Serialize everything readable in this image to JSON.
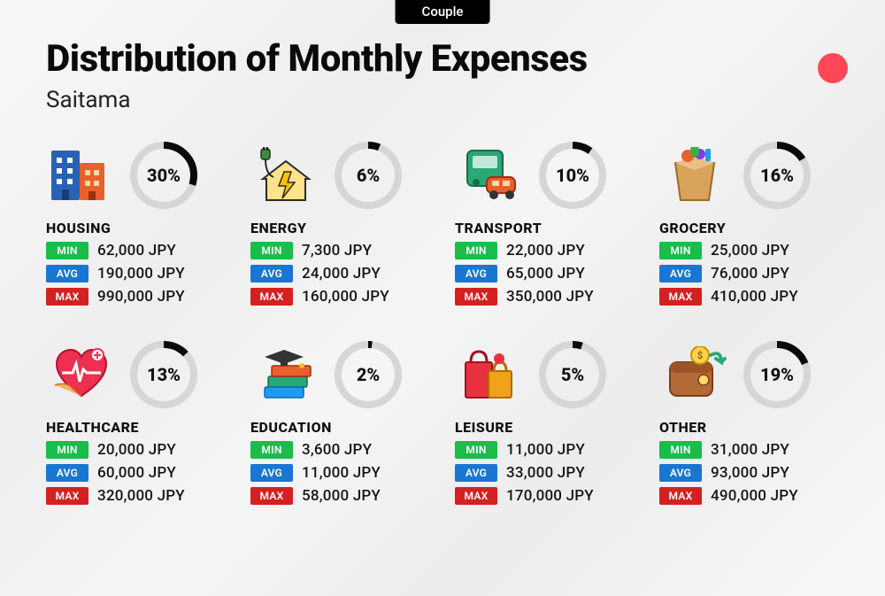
{
  "tab_label": "Couple",
  "title": "Distribution of Monthly Expenses",
  "subtitle": "Saitama",
  "currency": "JPY",
  "ring": {
    "track_color": "#d6d6d6",
    "progress_color": "#0a0a0a",
    "stroke_width": 8,
    "radius": 34
  },
  "badges": {
    "min": {
      "label": "MIN",
      "bg": "#1abc4a"
    },
    "avg": {
      "label": "AVG",
      "bg": "#1976d2"
    },
    "max": {
      "label": "MAX",
      "bg": "#d32121"
    }
  },
  "accent_dot_color": "#ff4757",
  "categories": [
    {
      "name": "HOUSING",
      "icon": "housing",
      "percent": 30,
      "min": "62,000",
      "avg": "190,000",
      "max": "990,000"
    },
    {
      "name": "ENERGY",
      "icon": "energy",
      "percent": 6,
      "min": "7,300",
      "avg": "24,000",
      "max": "160,000"
    },
    {
      "name": "TRANSPORT",
      "icon": "transport",
      "percent": 10,
      "min": "22,000",
      "avg": "65,000",
      "max": "350,000"
    },
    {
      "name": "GROCERY",
      "icon": "grocery",
      "percent": 16,
      "min": "25,000",
      "avg": "76,000",
      "max": "410,000"
    },
    {
      "name": "HEALTHCARE",
      "icon": "healthcare",
      "percent": 13,
      "min": "20,000",
      "avg": "60,000",
      "max": "320,000"
    },
    {
      "name": "EDUCATION",
      "icon": "education",
      "percent": 2,
      "min": "3,600",
      "avg": "11,000",
      "max": "58,000"
    },
    {
      "name": "LEISURE",
      "icon": "leisure",
      "percent": 5,
      "min": "11,000",
      "avg": "33,000",
      "max": "170,000"
    },
    {
      "name": "OTHER",
      "icon": "other",
      "percent": 19,
      "min": "31,000",
      "avg": "93,000",
      "max": "490,000"
    }
  ]
}
